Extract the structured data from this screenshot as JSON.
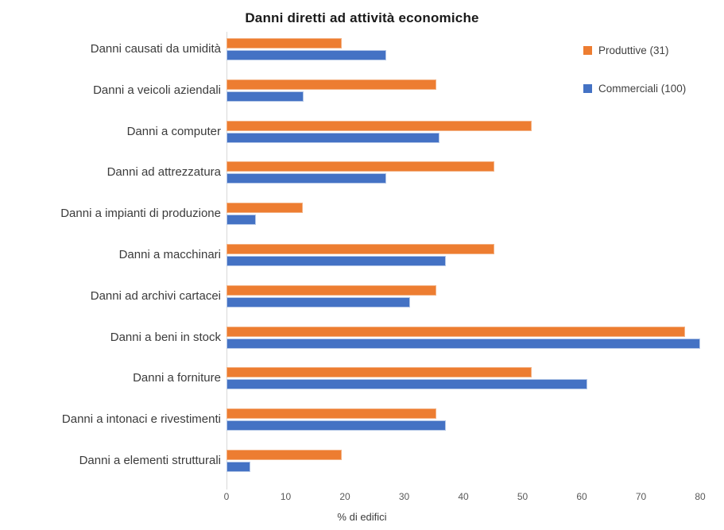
{
  "chart_data": {
    "type": "bar",
    "orientation": "horizontal",
    "title": "Danni diretti ad attività economiche",
    "xlabel": "% di edifici",
    "xlim": [
      0,
      80
    ],
    "xticks": [
      0,
      10,
      20,
      30,
      40,
      50,
      60,
      70,
      80
    ],
    "grid": false,
    "legend_position": "top-right",
    "categories": [
      "Danni causati da umidità",
      "Danni a veicoli aziendali",
      "Danni a computer",
      "Danni ad attrezzatura",
      "Danni a impianti di produzione",
      "Danni a macchinari",
      "Danni ad archivi cartacei",
      "Danni a beni in stock",
      "Danni a forniture",
      "Danni a intonaci e rivestimenti",
      "Danni a elementi strutturali"
    ],
    "series": [
      {
        "name": "Produttive (31)",
        "color": "#ED7D31",
        "values": [
          19.4,
          35.5,
          51.6,
          45.2,
          12.9,
          45.2,
          35.5,
          77.4,
          51.6,
          35.5,
          19.4
        ]
      },
      {
        "name": "Commerciali (100)",
        "color": "#4472C4",
        "values": [
          27,
          13,
          36,
          27,
          5,
          37,
          31,
          80,
          61,
          37,
          4
        ]
      }
    ]
  }
}
